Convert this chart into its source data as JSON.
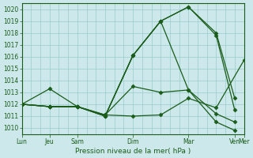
{
  "xlabel": "Pression niveau de la mer( hPa )",
  "background_color": "#cce8ea",
  "grid_color": "#99cccc",
  "line_color": "#1a5c1a",
  "ylim": [
    1009.5,
    1020.5
  ],
  "yticks": [
    1010,
    1011,
    1012,
    1013,
    1014,
    1015,
    1016,
    1017,
    1018,
    1019,
    1020
  ],
  "n_xcols": 24,
  "xtick_major": [
    0,
    3,
    6,
    12,
    18,
    24
  ],
  "xtick_major_labels": [
    "Lun",
    "Jeu",
    "Sam",
    "Dim",
    "Mar",
    "Mer"
  ],
  "xtick_extra": [
    23
  ],
  "xtick_extra_labels": [
    "Ven"
  ],
  "series": [
    {
      "x": [
        0,
        3,
        6,
        9,
        12,
        15,
        18,
        21,
        24
      ],
      "y": [
        1012.0,
        1013.3,
        1011.8,
        1011.1,
        1011.0,
        1011.1,
        1012.5,
        1011.7,
        1015.7
      ]
    },
    {
      "x": [
        0,
        3,
        6,
        9,
        12,
        15,
        18,
        21,
        23
      ],
      "y": [
        1012.0,
        1011.8,
        1011.8,
        1011.0,
        1016.1,
        1019.0,
        1020.2,
        1018.0,
        1012.5
      ]
    },
    {
      "x": [
        0,
        3,
        6,
        9,
        12,
        15,
        18,
        21,
        23
      ],
      "y": [
        1012.0,
        1011.8,
        1011.8,
        1011.0,
        1016.1,
        1019.0,
        1020.2,
        1017.8,
        1011.5
      ]
    },
    {
      "x": [
        0,
        3,
        6,
        9,
        12,
        15,
        18,
        21,
        23
      ],
      "y": [
        1012.0,
        1011.8,
        1011.8,
        1011.0,
        1016.1,
        1019.0,
        1013.2,
        1010.5,
        1009.8
      ]
    },
    {
      "x": [
        0,
        3,
        6,
        9,
        12,
        15,
        18,
        21,
        23
      ],
      "y": [
        1012.0,
        1011.8,
        1011.8,
        1011.1,
        1013.5,
        1013.0,
        1013.2,
        1011.2,
        1010.5
      ]
    }
  ]
}
